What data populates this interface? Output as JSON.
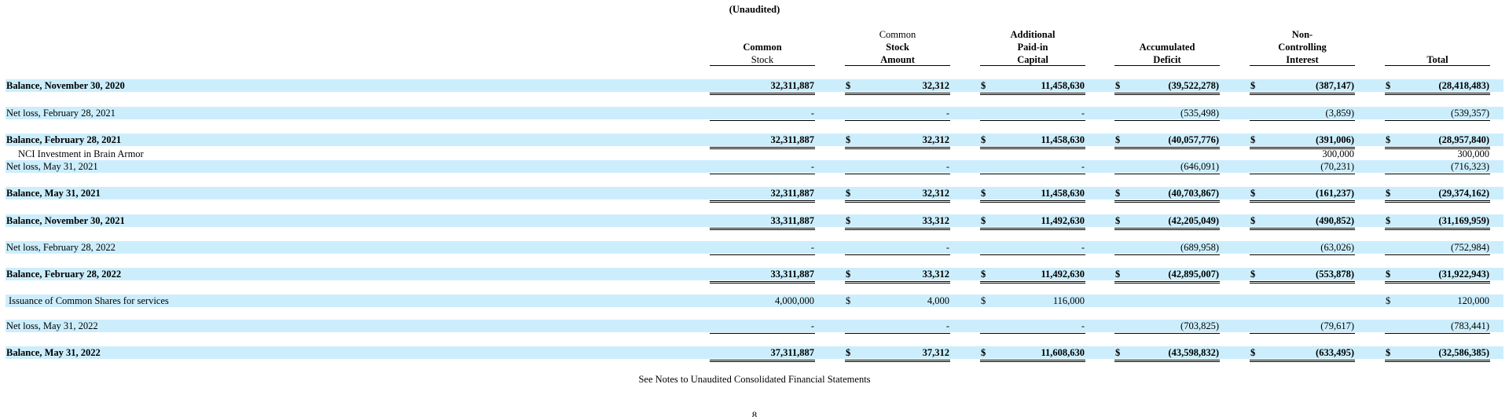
{
  "document": {
    "subtitle": "(Unaudited)",
    "footer_note": "See Notes to Unaudited Consolidated Financial Statements",
    "page_number": "8"
  },
  "columns": [
    {
      "lines": [
        {
          "text": "Common",
          "bold": true
        },
        {
          "text": "Stock",
          "bold": false
        }
      ]
    },
    {
      "lines": [
        {
          "text": "Common",
          "bold": false
        },
        {
          "text": "Stock",
          "bold": true
        },
        {
          "text": "Amount",
          "bold": true
        }
      ]
    },
    {
      "lines": [
        {
          "text": "Additional",
          "bold": true
        },
        {
          "text": "Paid-in",
          "bold": true
        },
        {
          "text": "Capital",
          "bold": true
        }
      ]
    },
    {
      "lines": [
        {
          "text": "Accumulated",
          "bold": true
        },
        {
          "text": "Deficit",
          "bold": true
        }
      ]
    },
    {
      "lines": [
        {
          "text": "Non-",
          "bold": true
        },
        {
          "text": "Controlling",
          "bold": true
        },
        {
          "text": "Interest",
          "bold": true
        }
      ]
    },
    {
      "lines": [
        {
          "text": "Total",
          "bold": true
        }
      ]
    }
  ],
  "rows": [
    {
      "label": "Balance, November 30, 2020",
      "bold": true,
      "shade": true,
      "underline": "double",
      "cells": [
        {
          "dollar": "",
          "value": "32,311,887"
        },
        {
          "dollar": "$",
          "value": "32,312"
        },
        {
          "dollar": "$",
          "value": "11,458,630"
        },
        {
          "dollar": "$",
          "value": "(39,522,278)"
        },
        {
          "dollar": "$",
          "value": "(387,147)"
        },
        {
          "dollar": "$",
          "value": "(28,418,483)"
        }
      ]
    },
    {
      "label": "Net loss,  February 28, 2021",
      "bold": false,
      "shade": true,
      "underline": "single",
      "cells": [
        {
          "dollar": "",
          "value": "-"
        },
        {
          "dollar": "",
          "value": "-"
        },
        {
          "dollar": "",
          "value": "-"
        },
        {
          "dollar": "",
          "value": "(535,498)"
        },
        {
          "dollar": "",
          "value": "(3,859)"
        },
        {
          "dollar": "",
          "value": "(539,357)"
        }
      ]
    },
    {
      "label": "Balance, February 28, 2021",
      "bold": true,
      "shade": true,
      "underline": "double",
      "cells": [
        {
          "dollar": "",
          "value": "32,311,887"
        },
        {
          "dollar": "$",
          "value": "32,312"
        },
        {
          "dollar": "$",
          "value": "11,458,630"
        },
        {
          "dollar": "$",
          "value": "(40,057,776)"
        },
        {
          "dollar": "$",
          "value": "(391,006)"
        },
        {
          "dollar": "$",
          "value": "(28,957,840)"
        }
      ]
    },
    {
      "label": "NCI Investment in Brain Armor",
      "bold": false,
      "shade": false,
      "underline": "none",
      "indent": true,
      "cells": [
        {
          "dollar": "",
          "value": ""
        },
        {
          "dollar": "",
          "value": ""
        },
        {
          "dollar": "",
          "value": ""
        },
        {
          "dollar": "",
          "value": ""
        },
        {
          "dollar": "",
          "value": "300,000"
        },
        {
          "dollar": "",
          "value": "300,000"
        }
      ]
    },
    {
      "label": "Net loss,  May 31, 2021",
      "bold": false,
      "shade": true,
      "underline": "single",
      "cells": [
        {
          "dollar": "",
          "value": "-"
        },
        {
          "dollar": "",
          "value": "-"
        },
        {
          "dollar": "",
          "value": "-"
        },
        {
          "dollar": "",
          "value": "(646,091)"
        },
        {
          "dollar": "",
          "value": "(70,231)"
        },
        {
          "dollar": "",
          "value": "(716,323)"
        }
      ]
    },
    {
      "label": "Balance, May 31, 2021",
      "bold": true,
      "shade": true,
      "underline": "double",
      "cells": [
        {
          "dollar": "",
          "value": "32,311,887"
        },
        {
          "dollar": "$",
          "value": "32,312"
        },
        {
          "dollar": "$",
          "value": "11,458,630"
        },
        {
          "dollar": "$",
          "value": "(40,703,867)"
        },
        {
          "dollar": "$",
          "value": "(161,237)"
        },
        {
          "dollar": "$",
          "value": "(29,374,162)"
        }
      ]
    },
    {
      "label": "Balance, November 30, 2021",
      "bold": true,
      "shade": true,
      "underline": "double",
      "cells": [
        {
          "dollar": "",
          "value": "33,311,887"
        },
        {
          "dollar": "$",
          "value": "33,312"
        },
        {
          "dollar": "$",
          "value": "11,492,630"
        },
        {
          "dollar": "$",
          "value": "(42,205,049)"
        },
        {
          "dollar": "$",
          "value": "(490,852)"
        },
        {
          "dollar": "$",
          "value": "(31,169,959)"
        }
      ]
    },
    {
      "label": "Net loss,  February 28, 2022",
      "bold": false,
      "shade": true,
      "underline": "single",
      "cells": [
        {
          "dollar": "",
          "value": "-"
        },
        {
          "dollar": "",
          "value": "-"
        },
        {
          "dollar": "",
          "value": "-"
        },
        {
          "dollar": "",
          "value": "(689,958)"
        },
        {
          "dollar": "",
          "value": "(63,026)"
        },
        {
          "dollar": "",
          "value": "(752,984)"
        }
      ]
    },
    {
      "label": "Balance, February 28, 2022",
      "bold": true,
      "shade": true,
      "underline": "double",
      "cells": [
        {
          "dollar": "",
          "value": "33,311,887"
        },
        {
          "dollar": "$",
          "value": "33,312"
        },
        {
          "dollar": "$",
          "value": "11,492,630"
        },
        {
          "dollar": "$",
          "value": "(42,895,007)"
        },
        {
          "dollar": "$",
          "value": "(553,878)"
        },
        {
          "dollar": "$",
          "value": "(31,922,943)"
        }
      ]
    },
    {
      "label": "Issuance of Common Shares for services",
      "bold": false,
      "shade": true,
      "underline": "none",
      "indent2": true,
      "cells": [
        {
          "dollar": "",
          "value": "4,000,000"
        },
        {
          "dollar": "$",
          "value": "4,000"
        },
        {
          "dollar": "$",
          "value": "116,000"
        },
        {
          "dollar": "",
          "value": ""
        },
        {
          "dollar": "",
          "value": ""
        },
        {
          "dollar": "$",
          "value": "120,000"
        }
      ]
    },
    {
      "label": "Net loss,  May 31, 2022",
      "bold": false,
      "shade": true,
      "underline": "single",
      "cells": [
        {
          "dollar": "",
          "value": "-"
        },
        {
          "dollar": "",
          "value": "-"
        },
        {
          "dollar": "",
          "value": "-"
        },
        {
          "dollar": "",
          "value": "(703,825)"
        },
        {
          "dollar": "",
          "value": "(79,617)"
        },
        {
          "dollar": "",
          "value": "(783,441)"
        }
      ]
    },
    {
      "label": "Balance, May 31, 2022",
      "bold": true,
      "shade": true,
      "underline": "double",
      "cells": [
        {
          "dollar": "",
          "value": "37,311,887"
        },
        {
          "dollar": "$",
          "value": "37,312"
        },
        {
          "dollar": "$",
          "value": "11,608,630"
        },
        {
          "dollar": "$",
          "value": "(43,598,832)"
        },
        {
          "dollar": "$",
          "value": "(633,495)"
        },
        {
          "dollar": "$",
          "value": "(32,586,385)"
        }
      ]
    }
  ],
  "colors": {
    "row_shade": "#cceefc"
  }
}
